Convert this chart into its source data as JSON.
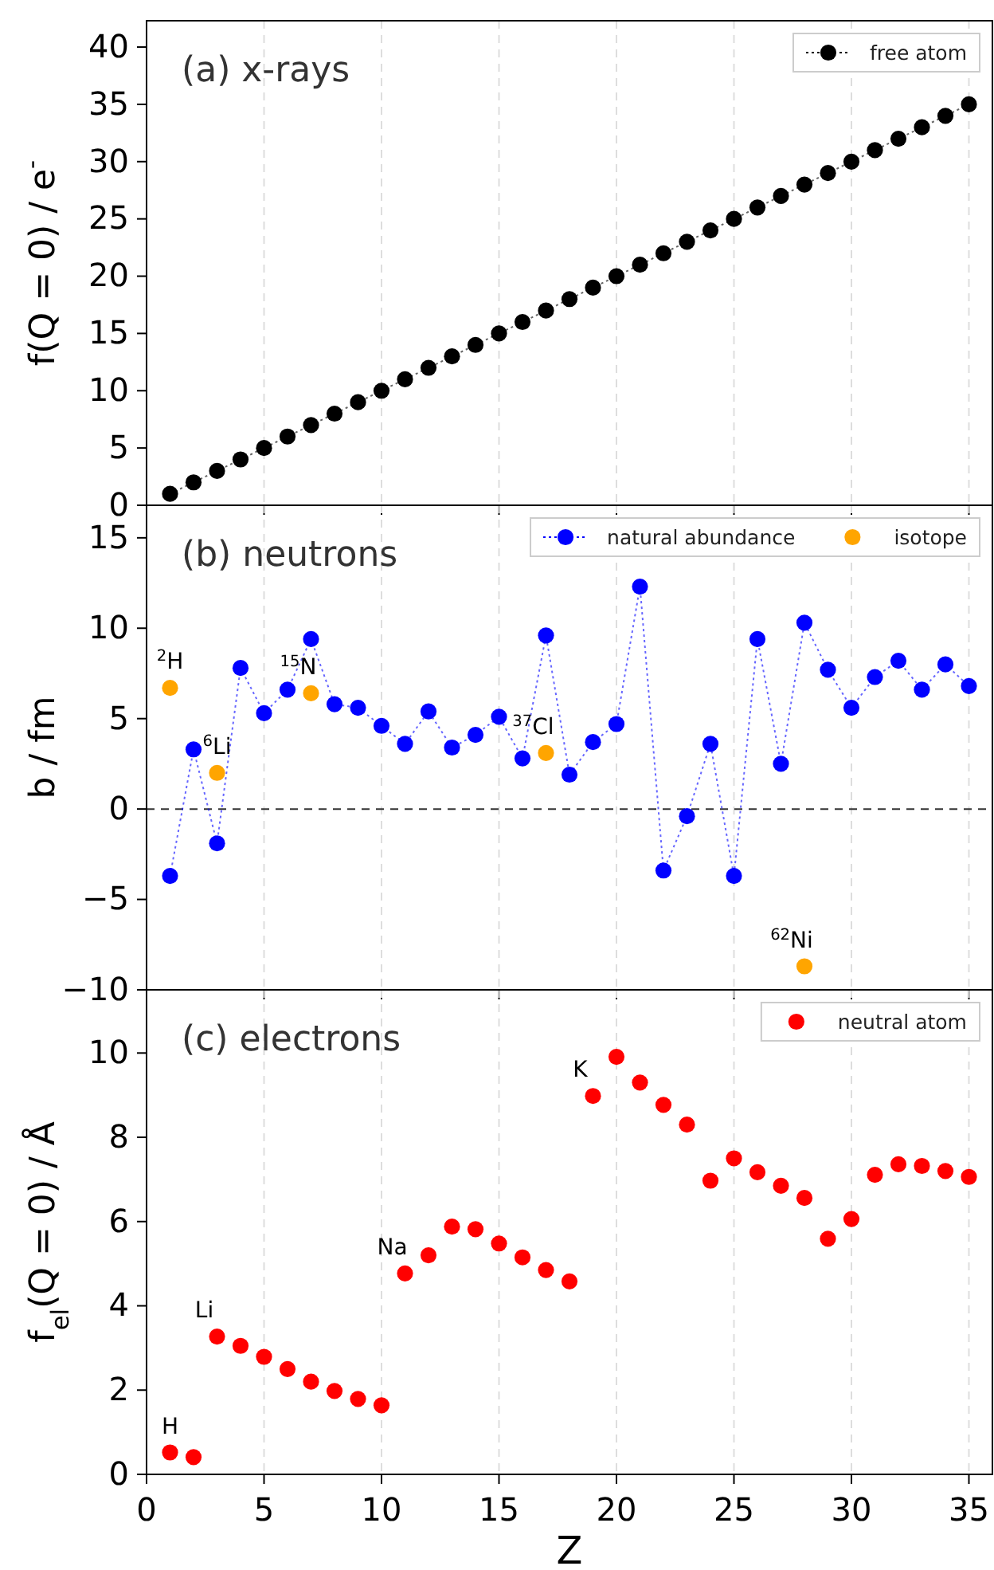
{
  "chart_data": [
    {
      "type": "line",
      "title": "(a) x-rays",
      "ylabel": "f(Q = 0) / e$^{-}$",
      "xlim": [
        0,
        36
      ],
      "xticks": [
        0,
        5,
        10,
        15,
        20,
        25,
        30,
        35
      ],
      "ylim": [
        0,
        42.3
      ],
      "yticks": [
        0,
        5,
        10,
        15,
        20,
        25,
        30,
        35,
        40
      ],
      "grid": "x",
      "legend": "top right",
      "tick_labels": "y",
      "marker": "circle",
      "x": [
        1,
        2,
        3,
        4,
        5,
        6,
        7,
        8,
        9,
        10,
        11,
        12,
        13,
        14,
        15,
        16,
        17,
        18,
        19,
        20,
        21,
        22,
        23,
        24,
        25,
        26,
        27,
        28,
        29,
        30,
        31,
        32,
        33,
        34,
        35
      ],
      "series": [
        {
          "name": "free atom",
          "color": "#000000",
          "line_style": "dotted",
          "values": [
            1,
            2,
            3,
            4,
            5,
            6,
            7,
            8,
            9,
            10,
            11,
            12,
            13,
            14,
            15,
            16,
            17,
            18,
            19,
            20,
            21,
            22,
            23,
            24,
            25,
            26,
            27,
            28,
            29,
            30,
            31,
            32,
            33,
            34,
            35
          ]
        }
      ]
    },
    {
      "type": "scatter",
      "title": "(b) neutrons",
      "ylabel": "b / fm",
      "xlim": [
        0,
        36
      ],
      "xticks": [
        0,
        5,
        10,
        15,
        20,
        25,
        30,
        35
      ],
      "ylim": [
        -10,
        16.8
      ],
      "yticks": [
        -10,
        -5,
        0,
        5,
        10,
        15
      ],
      "grid": "x",
      "legend": "top right",
      "tick_labels": "y",
      "marker": "circle",
      "x": [
        1,
        2,
        3,
        4,
        5,
        6,
        7,
        8,
        9,
        10,
        11,
        12,
        13,
        14,
        15,
        16,
        17,
        18,
        19,
        20,
        21,
        22,
        23,
        24,
        25,
        26,
        27,
        28,
        29,
        30,
        31,
        32,
        33,
        34,
        35
      ],
      "series": [
        {
          "name": "natural abundance",
          "type": "line",
          "color": "#0000ff",
          "line_style": "dotted",
          "values": [
            -3.7,
            3.3,
            -1.9,
            7.8,
            5.3,
            6.6,
            9.4,
            5.8,
            5.6,
            4.6,
            3.6,
            5.4,
            3.4,
            4.1,
            5.1,
            2.8,
            9.6,
            1.9,
            3.7,
            4.7,
            12.3,
            -3.4,
            -0.4,
            3.6,
            -3.7,
            9.4,
            2.5,
            10.3,
            7.7,
            5.6,
            7.3,
            8.2,
            6.6,
            8.0,
            6.8
          ]
        },
        {
          "name": "isotope",
          "color": "#ffa500",
          "x": [
            1,
            3,
            7,
            17,
            28
          ],
          "values": [
            6.7,
            2.0,
            6.4,
            3.1,
            -8.7
          ]
        }
      ],
      "ref_lines": [
        {
          "axis": "y",
          "value": 0,
          "color": "#333333",
          "line_style": "dashed"
        }
      ],
      "annotations": [
        {
          "text": "$^{2}$H",
          "x": 1,
          "y": 6.7
        },
        {
          "text": "$^{6}$Li",
          "x": 3,
          "y": 2.0
        },
        {
          "text": "$^{15}$N",
          "x": 7,
          "y": 6.4
        },
        {
          "text": "$^{37}$Cl",
          "x": 17,
          "y": 3.1
        },
        {
          "text": "$^{62}$Ni",
          "x": 28,
          "y": -8.7
        }
      ]
    },
    {
      "type": "scatter",
      "title": "(c) electrons",
      "xlabel": "Z",
      "ylabel": "f$_{el}$(Q = 0) / Å",
      "xlim": [
        0,
        36
      ],
      "xticks": [
        0,
        5,
        10,
        15,
        20,
        25,
        30,
        35
      ],
      "ylim": [
        0,
        11.5
      ],
      "yticks": [
        0,
        2,
        4,
        6,
        8,
        10
      ],
      "grid": "x",
      "legend": "top right",
      "marker": "circle",
      "x": [
        1,
        2,
        3,
        4,
        5,
        6,
        7,
        8,
        9,
        10,
        11,
        12,
        13,
        14,
        15,
        16,
        17,
        18,
        19,
        20,
        21,
        22,
        23,
        24,
        25,
        26,
        27,
        28,
        29,
        30,
        31,
        32,
        33,
        34,
        35
      ],
      "series": [
        {
          "name": "neutral atom",
          "color": "#ff0000",
          "values": [
            0.52,
            0.41,
            3.27,
            3.05,
            2.79,
            2.5,
            2.2,
            1.98,
            1.79,
            1.64,
            4.77,
            5.2,
            5.88,
            5.82,
            5.48,
            5.15,
            4.85,
            4.58,
            8.98,
            9.91,
            9.3,
            8.77,
            8.3,
            6.97,
            7.5,
            7.17,
            6.85,
            6.56,
            5.59,
            6.06,
            7.11,
            7.36,
            7.32,
            7.2,
            7.06
          ]
        }
      ],
      "annotations": [
        {
          "text": "H",
          "x": 1,
          "y": 0.52
        },
        {
          "text": "Li",
          "x": 3,
          "y": 3.27
        },
        {
          "text": "Na",
          "x": 11,
          "y": 4.77
        },
        {
          "text": "K",
          "x": 19,
          "y": 8.98
        }
      ]
    }
  ]
}
